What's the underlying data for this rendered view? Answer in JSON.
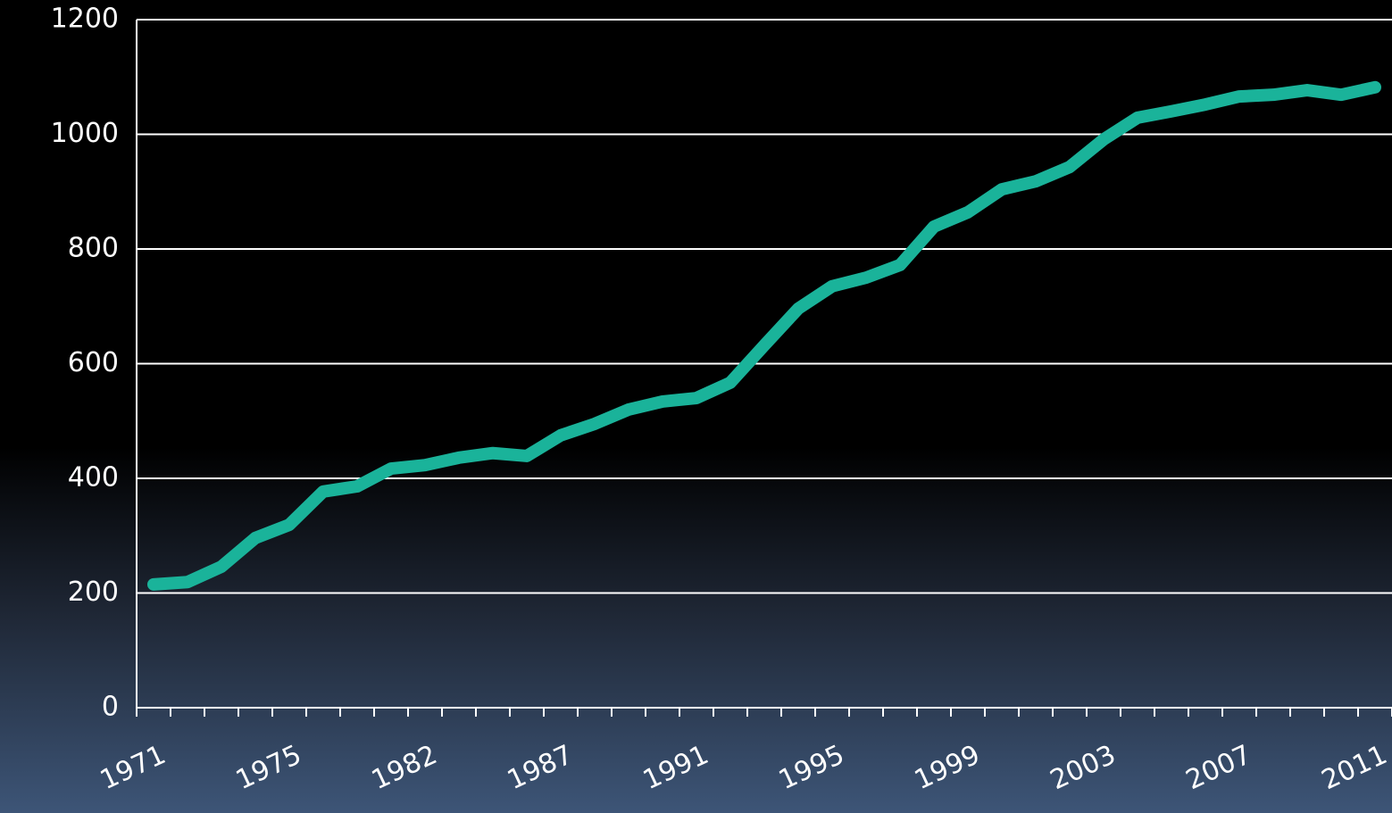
{
  "chart_data": {
    "type": "line",
    "categories": [
      "1971",
      null,
      null,
      null,
      "1975",
      null,
      null,
      null,
      "1982",
      null,
      null,
      null,
      "1987",
      null,
      null,
      null,
      "1991",
      null,
      null,
      null,
      "1995",
      null,
      null,
      null,
      "1999",
      null,
      null,
      null,
      "2003",
      null,
      null,
      null,
      "2007",
      null,
      null,
      null,
      "2011"
    ],
    "values": [
      215,
      219,
      246,
      296,
      319,
      377,
      386,
      417,
      423,
      436,
      444,
      439,
      475,
      495,
      520,
      534,
      540,
      567,
      632,
      696,
      735,
      750,
      772,
      839,
      864,
      904,
      918,
      943,
      991,
      1029,
      1040,
      1052,
      1066,
      1069,
      1077,
      1069,
      1082
    ],
    "color": "#1ab39a",
    "ylim": [
      0,
      1200
    ],
    "yticks": [
      0,
      200,
      400,
      600,
      800,
      1000,
      1200
    ],
    "grid": true
  }
}
